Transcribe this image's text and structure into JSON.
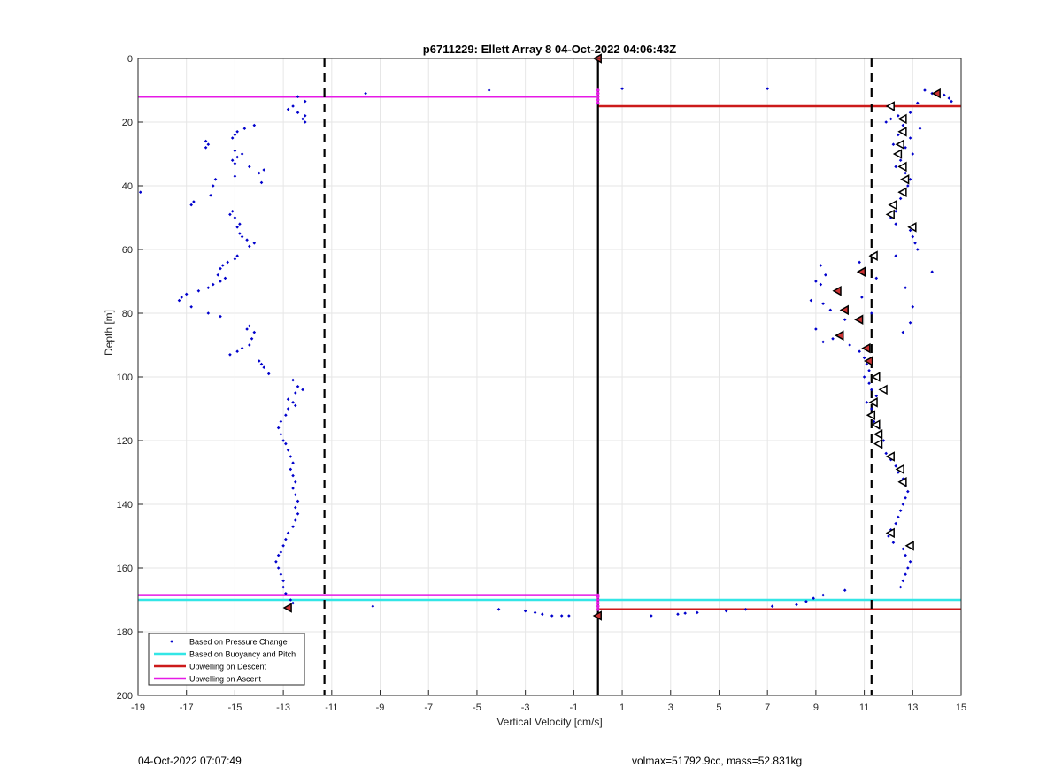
{
  "footer": {
    "timestamp": "04-Oct-2022 07:07:49",
    "params": "volmax=51792.9cc, mass=52.831kg"
  },
  "chart_data": {
    "type": "scatter",
    "title": "p6711229: Ellett Array 8 04-Oct-2022 04:06:43Z",
    "xlabel": "Vertical Velocity [cm/s]",
    "ylabel": "Depth [m]",
    "xlim": [
      -19,
      15
    ],
    "ylim": [
      0,
      200
    ],
    "y_reversed": true,
    "grid": true,
    "xticks": [
      -19,
      -17,
      -15,
      -13,
      -11,
      -9,
      -7,
      -5,
      -3,
      -1,
      1,
      3,
      5,
      7,
      9,
      11,
      13,
      15
    ],
    "yticks": [
      0,
      20,
      40,
      60,
      80,
      100,
      120,
      140,
      160,
      180,
      200
    ],
    "legend_position": "bottom-left",
    "colors": {
      "pressure": "#0000cc",
      "buoyancy": "#33e6e6",
      "descent": "#cc1a1a",
      "ascent": "#e61ae6",
      "reference": "#000000",
      "marker_fill": "#cc3333"
    },
    "legend": [
      {
        "label": "Based on Pressure Change",
        "kind": "marker",
        "color": "#0000cc"
      },
      {
        "label": "Based on Buoyancy and Pitch",
        "kind": "line",
        "color": "#33e6e6"
      },
      {
        "label": "Upwelling on Descent",
        "kind": "line",
        "color": "#cc1a1a"
      },
      {
        "label": "Upwelling on Ascent",
        "kind": "line",
        "color": "#e61ae6"
      }
    ],
    "reference_lines": [
      {
        "x": -11.3,
        "style": "dashed"
      },
      {
        "x": 0,
        "style": "solid"
      },
      {
        "x": 11.3,
        "style": "dashed"
      }
    ],
    "horizontal_lines": [
      {
        "series": "Upwelling on Ascent",
        "y": 12,
        "x_range": [
          -19,
          0
        ]
      },
      {
        "series": "Upwelling on Descent",
        "y": 15,
        "x_range": [
          0,
          15
        ]
      },
      {
        "series": "Upwelling on Ascent",
        "y": 168.5,
        "x_range": [
          -19,
          0
        ]
      },
      {
        "series": "Based on Buoyancy and Pitch",
        "y": 170,
        "x_range": [
          -19,
          15
        ]
      },
      {
        "series": "Upwelling on Descent",
        "y": 173,
        "x_range": [
          0,
          15
        ]
      }
    ],
    "ascent_points": [
      [
        -12.4,
        12
      ],
      [
        -12.1,
        13.5
      ],
      [
        -9.6,
        11
      ],
      [
        -4.5,
        10
      ],
      [
        -12.6,
        15
      ],
      [
        -12.8,
        16
      ],
      [
        -12.4,
        17
      ],
      [
        -12.1,
        18
      ],
      [
        -12.2,
        19
      ],
      [
        -12.1,
        20
      ],
      [
        -14.2,
        21
      ],
      [
        -14.6,
        22
      ],
      [
        -14.9,
        23
      ],
      [
        -15.0,
        24
      ],
      [
        -15.1,
        25
      ],
      [
        -16.2,
        26
      ],
      [
        -16.1,
        27
      ],
      [
        -16.2,
        28
      ],
      [
        -15.0,
        29
      ],
      [
        -14.7,
        30
      ],
      [
        -14.9,
        31
      ],
      [
        -15.1,
        32
      ],
      [
        -15.0,
        33
      ],
      [
        -14.4,
        34
      ],
      [
        -13.8,
        35
      ],
      [
        -14.0,
        36
      ],
      [
        -15.0,
        37
      ],
      [
        -15.8,
        38
      ],
      [
        -13.9,
        39
      ],
      [
        -15.9,
        40
      ],
      [
        -18.9,
        42
      ],
      [
        -16.0,
        43
      ],
      [
        -16.7,
        45
      ],
      [
        -16.8,
        46
      ],
      [
        -15.1,
        48
      ],
      [
        -15.2,
        49
      ],
      [
        -15.0,
        50
      ],
      [
        -14.8,
        52
      ],
      [
        -14.9,
        53
      ],
      [
        -14.8,
        55
      ],
      [
        -14.7,
        56
      ],
      [
        -14.5,
        57
      ],
      [
        -14.2,
        58
      ],
      [
        -14.4,
        59
      ],
      [
        -14.9,
        62
      ],
      [
        -15.0,
        63
      ],
      [
        -15.3,
        64
      ],
      [
        -15.5,
        65
      ],
      [
        -15.6,
        66
      ],
      [
        -15.7,
        68
      ],
      [
        -15.4,
        69
      ],
      [
        -15.6,
        70
      ],
      [
        -15.9,
        71
      ],
      [
        -16.1,
        72
      ],
      [
        -16.5,
        73
      ],
      [
        -17.0,
        74
      ],
      [
        -17.2,
        75
      ],
      [
        -17.3,
        76
      ],
      [
        -16.8,
        78
      ],
      [
        -16.1,
        80
      ],
      [
        -15.6,
        81
      ],
      [
        -14.4,
        84
      ],
      [
        -14.5,
        85
      ],
      [
        -14.2,
        86
      ],
      [
        -14.3,
        88
      ],
      [
        -14.4,
        90
      ],
      [
        -14.7,
        91
      ],
      [
        -14.9,
        92
      ],
      [
        -15.2,
        93
      ],
      [
        -14.0,
        95
      ],
      [
        -13.9,
        96
      ],
      [
        -13.8,
        97
      ],
      [
        -13.6,
        99
      ],
      [
        -12.6,
        101
      ],
      [
        -12.4,
        103
      ],
      [
        -12.2,
        104
      ],
      [
        -12.5,
        105
      ],
      [
        -12.8,
        107
      ],
      [
        -12.6,
        108
      ],
      [
        -12.5,
        109
      ],
      [
        -12.8,
        110
      ],
      [
        -12.9,
        112
      ],
      [
        -13.1,
        114
      ],
      [
        -13.2,
        116
      ],
      [
        -13.1,
        118
      ],
      [
        -13.0,
        120
      ],
      [
        -12.9,
        121
      ],
      [
        -12.8,
        123
      ],
      [
        -12.7,
        125
      ],
      [
        -12.6,
        127
      ],
      [
        -12.7,
        129
      ],
      [
        -12.6,
        131
      ],
      [
        -12.5,
        133
      ],
      [
        -12.6,
        135
      ],
      [
        -12.5,
        137
      ],
      [
        -12.4,
        139
      ],
      [
        -12.5,
        141
      ],
      [
        -12.4,
        143
      ],
      [
        -12.5,
        145
      ],
      [
        -12.6,
        147
      ],
      [
        -12.8,
        149
      ],
      [
        -12.9,
        151
      ],
      [
        -13.0,
        153
      ],
      [
        -13.1,
        155
      ],
      [
        -13.2,
        156
      ],
      [
        -13.3,
        158
      ],
      [
        -13.2,
        160
      ],
      [
        -13.1,
        162
      ],
      [
        -13.0,
        164
      ],
      [
        -13.0,
        166
      ],
      [
        -12.9,
        168
      ],
      [
        -12.7,
        170
      ],
      [
        -12.6,
        171
      ],
      [
        -9.3,
        172
      ],
      [
        -4.1,
        173
      ],
      [
        -3.0,
        173.5
      ],
      [
        -2.6,
        174
      ],
      [
        -2.3,
        174.5
      ],
      [
        -1.9,
        175
      ],
      [
        -1.5,
        175
      ],
      [
        -1.2,
        175
      ]
    ],
    "descent_points": [
      [
        1.0,
        9.5
      ],
      [
        7.0,
        9.5
      ],
      [
        13.5,
        10
      ],
      [
        13.8,
        11
      ],
      [
        14.3,
        11.5
      ],
      [
        14.5,
        12.5
      ],
      [
        14.6,
        13.5
      ],
      [
        13.2,
        14
      ],
      [
        12.2,
        16
      ],
      [
        12.9,
        17
      ],
      [
        12.4,
        18
      ],
      [
        12.1,
        19
      ],
      [
        11.9,
        20
      ],
      [
        12.6,
        21
      ],
      [
        13.3,
        22
      ],
      [
        12.4,
        24
      ],
      [
        12.9,
        25
      ],
      [
        12.2,
        27
      ],
      [
        12.7,
        28
      ],
      [
        13.0,
        30
      ],
      [
        12.5,
        32
      ],
      [
        12.3,
        34
      ],
      [
        12.7,
        36
      ],
      [
        12.9,
        38
      ],
      [
        12.8,
        40
      ],
      [
        12.6,
        42
      ],
      [
        12.5,
        44
      ],
      [
        12.2,
        46
      ],
      [
        12.3,
        48
      ],
      [
        12.1,
        50
      ],
      [
        12.3,
        52
      ],
      [
        12.9,
        54
      ],
      [
        13.0,
        56
      ],
      [
        13.1,
        58
      ],
      [
        13.2,
        60
      ],
      [
        12.3,
        62
      ],
      [
        10.8,
        64
      ],
      [
        9.2,
        65
      ],
      [
        9.4,
        68
      ],
      [
        11.5,
        69
      ],
      [
        9.0,
        70
      ],
      [
        9.2,
        71
      ],
      [
        12.7,
        72
      ],
      [
        10.9,
        75
      ],
      [
        8.8,
        76
      ],
      [
        9.3,
        77
      ],
      [
        13.0,
        78
      ],
      [
        9.6,
        79
      ],
      [
        11.3,
        80
      ],
      [
        10.2,
        82
      ],
      [
        12.9,
        83
      ],
      [
        9.0,
        85
      ],
      [
        12.6,
        86
      ],
      [
        9.7,
        88
      ],
      [
        9.3,
        89
      ],
      [
        10.4,
        90
      ],
      [
        10.8,
        92
      ],
      [
        11.0,
        94
      ],
      [
        11.1,
        96
      ],
      [
        11.2,
        98
      ],
      [
        11.0,
        100
      ],
      [
        11.2,
        102
      ],
      [
        11.3,
        104
      ],
      [
        11.5,
        106
      ],
      [
        11.1,
        108
      ],
      [
        11.3,
        110
      ],
      [
        11.2,
        112
      ],
      [
        11.4,
        114
      ],
      [
        11.6,
        116
      ],
      [
        11.7,
        118
      ],
      [
        11.8,
        120
      ],
      [
        11.7,
        122
      ],
      [
        11.9,
        124
      ],
      [
        12.1,
        126
      ],
      [
        12.3,
        128
      ],
      [
        12.4,
        130
      ],
      [
        12.6,
        132
      ],
      [
        12.7,
        134
      ],
      [
        12.8,
        136
      ],
      [
        12.7,
        138
      ],
      [
        12.6,
        140
      ],
      [
        12.5,
        142
      ],
      [
        12.4,
        144
      ],
      [
        12.3,
        146
      ],
      [
        12.1,
        148
      ],
      [
        12.0,
        150
      ],
      [
        12.2,
        152
      ],
      [
        12.6,
        154
      ],
      [
        12.7,
        156
      ],
      [
        12.9,
        158
      ],
      [
        12.8,
        160
      ],
      [
        12.7,
        162
      ],
      [
        12.6,
        164
      ],
      [
        12.5,
        166
      ],
      [
        10.2,
        167
      ],
      [
        9.3,
        168.5
      ],
      [
        8.9,
        169.5
      ],
      [
        8.6,
        170.5
      ],
      [
        8.2,
        171.5
      ],
      [
        7.2,
        172
      ],
      [
        6.1,
        173
      ],
      [
        5.3,
        173.5
      ],
      [
        4.1,
        174
      ],
      [
        3.6,
        174.2
      ],
      [
        3.3,
        174.5
      ],
      [
        2.2,
        175
      ],
      [
        13.8,
        67
      ]
    ],
    "ascent_markers_filled": [
      [
        -12.8,
        172.5
      ]
    ],
    "descent_markers_filled": [
      [
        0,
        0
      ],
      [
        0,
        175
      ],
      [
        14.0,
        11
      ],
      [
        9.9,
        73
      ],
      [
        10.2,
        79
      ],
      [
        10.9,
        67
      ],
      [
        10.8,
        82
      ],
      [
        10.0,
        87
      ],
      [
        11.1,
        91
      ],
      [
        11.2,
        95
      ]
    ],
    "descent_markers_open": [
      [
        12.1,
        15
      ],
      [
        12.6,
        19
      ],
      [
        12.6,
        23
      ],
      [
        12.5,
        27
      ],
      [
        12.4,
        30
      ],
      [
        12.6,
        34
      ],
      [
        12.7,
        38
      ],
      [
        12.6,
        42
      ],
      [
        12.2,
        46
      ],
      [
        12.1,
        49
      ],
      [
        13.0,
        53
      ],
      [
        11.4,
        62
      ],
      [
        11.5,
        100
      ],
      [
        11.8,
        104
      ],
      [
        11.4,
        108
      ],
      [
        11.3,
        112
      ],
      [
        11.5,
        115
      ],
      [
        11.6,
        118
      ],
      [
        11.6,
        121
      ],
      [
        12.1,
        125
      ],
      [
        12.5,
        129
      ],
      [
        12.6,
        133
      ],
      [
        12.1,
        149
      ],
      [
        12.9,
        153
      ]
    ],
    "zero_line_points": [
      [
        0,
        10
      ],
      [
        0,
        11
      ],
      [
        0,
        12
      ],
      [
        0,
        13
      ],
      [
        0,
        14
      ],
      [
        0,
        168.5
      ],
      [
        0,
        169
      ],
      [
        0,
        170
      ],
      [
        0,
        171
      ],
      [
        0,
        172
      ],
      [
        0,
        173
      ]
    ]
  }
}
